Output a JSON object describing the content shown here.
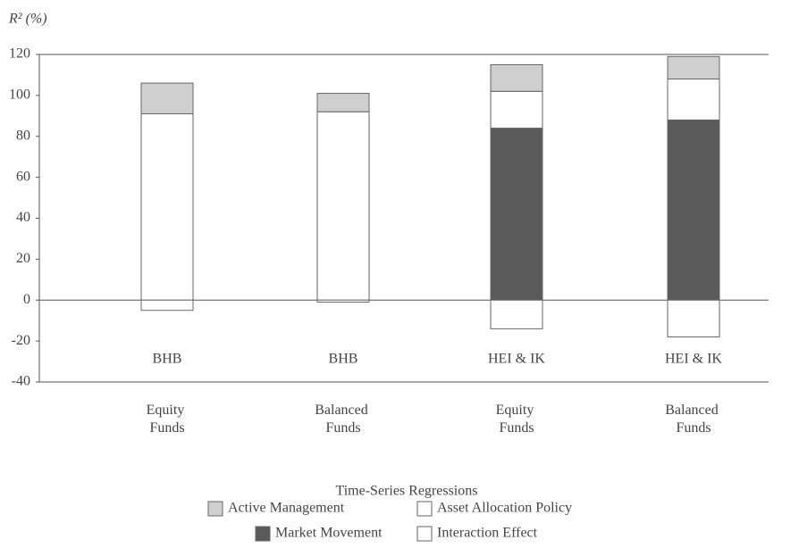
{
  "chart_data": {
    "type": "stacked_bar",
    "y_label": "R² (%)",
    "x_label": "Time-Series Regressions",
    "categories": [
      "Equity Funds",
      "Balanced Funds",
      "Equity Funds",
      "Balanced Funds"
    ],
    "annotations": [
      "BHB",
      "BHB",
      "HEI & IK",
      "HEI & IK"
    ],
    "series": [
      {
        "name": "Market Movement",
        "color": "#5a5a5a",
        "values": [
          null,
          null,
          84,
          88
        ]
      },
      {
        "name": "Asset Allocation Policy",
        "color": "#ffffff",
        "values": [
          91,
          92,
          18,
          20
        ]
      },
      {
        "name": "Active Management",
        "color": "#cfcfcf",
        "values": [
          15,
          9,
          13,
          11
        ]
      },
      {
        "name": "Interaction Effect",
        "color": "#ffffff",
        "values": [
          -5,
          -1,
          -14,
          -18
        ]
      }
    ],
    "ylim": [
      -40,
      120
    ],
    "yticks": [
      -40,
      -20,
      0,
      20,
      40,
      60,
      80,
      100,
      120
    ]
  }
}
